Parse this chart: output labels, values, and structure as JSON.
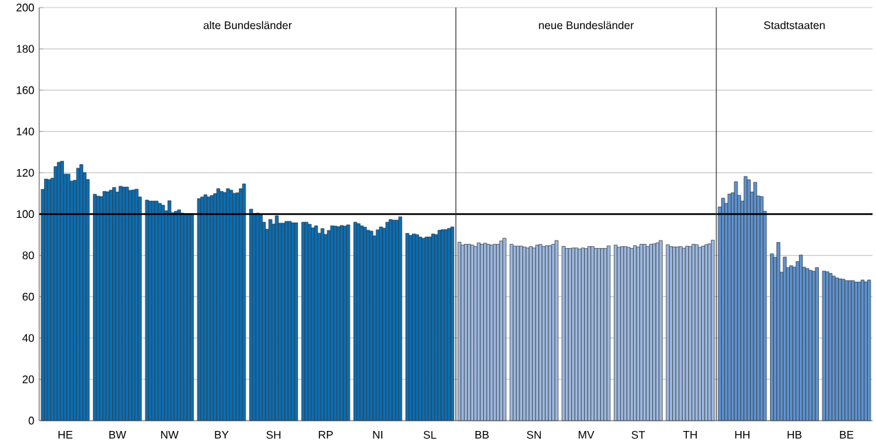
{
  "chart_data": {
    "type": "bar",
    "categories": [
      "HE",
      "BW",
      "NW",
      "BY",
      "SH",
      "RP",
      "NI",
      "SL",
      "BB",
      "SN",
      "MV",
      "ST",
      "TH",
      "HH",
      "HB",
      "BE"
    ],
    "ylim": [
      0,
      200
    ],
    "yticks": [
      0,
      20,
      40,
      60,
      80,
      100,
      120,
      140,
      160,
      180,
      200
    ],
    "grid": "y",
    "ref_lines": [
      {
        "axis": "y",
        "value": 100,
        "color": "#000000"
      }
    ],
    "annotations": [
      "alte Bundesländer",
      "neue Bundesländer",
      "Stadtstaaten"
    ],
    "series": [
      {
        "colors": [
          "#0a6eb4",
          "#0a6eb4",
          "#0a6eb4",
          "#0a6eb4",
          "#0a6eb4",
          "#0a6eb4",
          "#0a6eb4",
          "#0a6eb4",
          "#9cb8e0",
          "#9cb8e0",
          "#9cb8e0",
          "#9cb8e0",
          "#9cb8e0",
          "#5e92cf",
          "#5e92cf",
          "#5e92cf"
        ],
        "values": [
          112.0,
          109.6,
          106.8,
          107.5,
          102.4,
          96.1,
          96.1,
          90.7,
          86.4,
          85.4,
          84.4,
          85.0,
          85.2,
          103.5,
          80.8,
          72.4
        ]
      },
      {
        "colors": [
          "#0a6eb4",
          "#0a6eb4",
          "#0a6eb4",
          "#0a6eb4",
          "#0a6eb4",
          "#0a6eb4",
          "#0a6eb4",
          "#0a6eb4",
          "#9cb8e0",
          "#9cb8e0",
          "#9cb8e0",
          "#9cb8e0",
          "#9cb8e0",
          "#5e92cf",
          "#5e92cf",
          "#5e92cf"
        ],
        "values": [
          117.0,
          108.7,
          106.3,
          108.3,
          100.3,
          96.1,
          95.4,
          89.7,
          85.0,
          84.5,
          83.4,
          83.9,
          84.3,
          107.7,
          79.1,
          72.1
        ]
      },
      {
        "colors": [
          "#0a6eb4",
          "#0a6eb4",
          "#0a6eb4",
          "#0a6eb4",
          "#0a6eb4",
          "#0a6eb4",
          "#0a6eb4",
          "#0a6eb4",
          "#9cb8e0",
          "#9cb8e0",
          "#9cb8e0",
          "#9cb8e0",
          "#9cb8e0",
          "#5e92cf",
          "#5e92cf",
          "#5e92cf"
        ],
        "values": [
          116.7,
          108.5,
          106.3,
          109.4,
          100.5,
          95.1,
          94.3,
          90.4,
          85.4,
          84.5,
          83.4,
          84.3,
          84.1,
          105.2,
          86.3,
          71.3
        ]
      },
      {
        "colors": [
          "#0a6eb4",
          "#0a6eb4",
          "#0a6eb4",
          "#0a6eb4",
          "#0a6eb4",
          "#0a6eb4",
          "#0a6eb4",
          "#0a6eb4",
          "#9cb8e0",
          "#9cb8e0",
          "#9cb8e0",
          "#9cb8e0",
          "#9cb8e0",
          "#5e92cf",
          "#5e92cf",
          "#5e92cf"
        ],
        "values": [
          117.4,
          111.0,
          106.3,
          108.3,
          99.6,
          93.3,
          93.7,
          90.1,
          85.4,
          84.5,
          83.6,
          84.3,
          84.1,
          109.7,
          71.9,
          70.0
        ]
      },
      {
        "colors": [
          "#0a6eb4",
          "#0a6eb4",
          "#0a6eb4",
          "#0a6eb4",
          "#0a6eb4",
          "#0a6eb4",
          "#0a6eb4",
          "#0a6eb4",
          "#9cb8e0",
          "#9cb8e0",
          "#9cb8e0",
          "#9cb8e0",
          "#9cb8e0",
          "#5e92cf",
          "#5e92cf",
          "#5e92cf"
        ],
        "values": [
          123.0,
          110.8,
          105.2,
          109.0,
          96.1,
          94.3,
          92.2,
          88.9,
          85.0,
          84.1,
          83.6,
          83.9,
          84.3,
          110.3,
          79.2,
          69.1
        ]
      },
      {
        "colors": [
          "#0a6eb4",
          "#0a6eb4",
          "#0a6eb4",
          "#0a6eb4",
          "#0a6eb4",
          "#0a6eb4",
          "#0a6eb4",
          "#0a6eb4",
          "#9cb8e0",
          "#9cb8e0",
          "#9cb8e0",
          "#9cb8e0",
          "#9cb8e0",
          "#5e92cf",
          "#5e92cf",
          "#5e92cf"
        ],
        "values": [
          125.1,
          111.6,
          104.3,
          109.9,
          92.7,
          90.8,
          91.8,
          88.3,
          84.3,
          83.6,
          83.1,
          83.4,
          83.5,
          115.7,
          74.1,
          68.6
        ]
      },
      {
        "colors": [
          "#0a6eb4",
          "#0a6eb4",
          "#0a6eb4",
          "#0a6eb4",
          "#0a6eb4",
          "#0a6eb4",
          "#0a6eb4",
          "#0a6eb4",
          "#9cb8e0",
          "#9cb8e0",
          "#9cb8e0",
          "#9cb8e0",
          "#9cb8e0",
          "#5e92cf",
          "#5e92cf",
          "#5e92cf"
        ],
        "values": [
          125.6,
          112.9,
          101.6,
          112.3,
          97.4,
          93.0,
          89.5,
          88.9,
          86.1,
          84.3,
          83.6,
          84.7,
          84.5,
          109.1,
          75.0,
          68.5
        ]
      },
      {
        "colors": [
          "#0a6eb4",
          "#0a6eb4",
          "#0a6eb4",
          "#0a6eb4",
          "#0a6eb4",
          "#0a6eb4",
          "#0a6eb4",
          "#0a6eb4",
          "#9cb8e0",
          "#9cb8e0",
          "#9cb8e0",
          "#9cb8e0",
          "#9cb8e0",
          "#5e92cf",
          "#5e92cf",
          "#5e92cf"
        ],
        "values": [
          119.4,
          110.7,
          106.5,
          111.0,
          95.2,
          90.2,
          92.4,
          88.9,
          85.4,
          83.6,
          83.3,
          84.1,
          84.3,
          106.3,
          74.3,
          67.8
        ]
      },
      {
        "colors": [
          "#0a6eb4",
          "#0a6eb4",
          "#0a6eb4",
          "#0a6eb4",
          "#0a6eb4",
          "#0a6eb4",
          "#0a6eb4",
          "#0a6eb4",
          "#9cb8e0",
          "#9cb8e0",
          "#9cb8e0",
          "#9cb8e0",
          "#9cb8e0",
          "#5e92cf",
          "#5e92cf",
          "#5e92cf"
        ],
        "values": [
          119.4,
          113.5,
          100.7,
          110.5,
          99.2,
          92.1,
          93.8,
          90.4,
          85.9,
          85.0,
          84.3,
          85.4,
          85.4,
          118.2,
          77.0,
          67.8
        ]
      },
      {
        "colors": [
          "#0a6eb4",
          "#0a6eb4",
          "#0a6eb4",
          "#0a6eb4",
          "#0a6eb4",
          "#0a6eb4",
          "#0a6eb4",
          "#0a6eb4",
          "#9cb8e0",
          "#9cb8e0",
          "#9cb8e0",
          "#9cb8e0",
          "#9cb8e0",
          "#5e92cf",
          "#5e92cf",
          "#5e92cf"
        ],
        "values": [
          116.0,
          113.1,
          101.3,
          112.3,
          95.6,
          94.3,
          93.2,
          90.1,
          85.4,
          85.3,
          84.3,
          85.4,
          85.2,
          116.6,
          80.2,
          67.8
        ]
      },
      {
        "colors": [
          "#0a6eb4",
          "#0a6eb4",
          "#0a6eb4",
          "#0a6eb4",
          "#0a6eb4",
          "#0a6eb4",
          "#0a6eb4",
          "#0a6eb4",
          "#9cb8e0",
          "#9cb8e0",
          "#9cb8e0",
          "#9cb8e0",
          "#9cb8e0",
          "#5e92cf",
          "#5e92cf",
          "#5e92cf"
        ],
        "values": [
          116.4,
          113.1,
          102.1,
          111.6,
          95.6,
          94.2,
          96.1,
          92.2,
          85.0,
          84.3,
          83.4,
          84.3,
          83.9,
          110.7,
          74.3,
          67.1
        ]
      },
      {
        "colors": [
          "#0a6eb4",
          "#0a6eb4",
          "#0a6eb4",
          "#0a6eb4",
          "#0a6eb4",
          "#0a6eb4",
          "#0a6eb4",
          "#0a6eb4",
          "#9cb8e0",
          "#9cb8e0",
          "#9cb8e0",
          "#9cb8e0",
          "#9cb8e0",
          "#5e92cf",
          "#5e92cf",
          "#5e92cf"
        ],
        "values": [
          122.2,
          111.5,
          100.5,
          110.1,
          96.5,
          93.9,
          97.4,
          92.5,
          85.4,
          84.7,
          83.4,
          85.4,
          84.5,
          115.4,
          73.6,
          67.1
        ]
      },
      {
        "colors": [
          "#0a6eb4",
          "#0a6eb4",
          "#0a6eb4",
          "#0a6eb4",
          "#0a6eb4",
          "#0a6eb4",
          "#0a6eb4",
          "#0a6eb4",
          "#9cb8e0",
          "#9cb8e0",
          "#9cb8e0",
          "#9cb8e0",
          "#9cb8e0",
          "#5e92cf",
          "#5e92cf",
          "#5e92cf"
        ],
        "values": [
          124.0,
          111.7,
          100.2,
          110.3,
          96.5,
          94.5,
          97.1,
          92.5,
          85.4,
          84.7,
          83.4,
          85.6,
          85.2,
          108.8,
          72.8,
          68.1
        ]
      },
      {
        "colors": [
          "#0a6eb4",
          "#0a6eb4",
          "#0a6eb4",
          "#0a6eb4",
          "#0a6eb4",
          "#0a6eb4",
          "#0a6eb4",
          "#0a6eb4",
          "#9cb8e0",
          "#9cb8e0",
          "#9cb8e0",
          "#9cb8e0",
          "#9cb8e0",
          "#5e92cf",
          "#5e92cf",
          "#5e92cf"
        ],
        "values": [
          120.1,
          112.1,
          100.2,
          112.3,
          95.8,
          94.2,
          97.1,
          93.1,
          87.0,
          85.4,
          83.4,
          86.1,
          85.6,
          108.5,
          72.3,
          67.2
        ]
      },
      {
        "colors": [
          "#0a6eb4",
          "#0a6eb4",
          "#0a6eb4",
          "#0a6eb4",
          "#0a6eb4",
          "#0a6eb4",
          "#0a6eb4",
          "#0a6eb4",
          "#9cb8e0",
          "#9cb8e0",
          "#9cb8e0",
          "#9cb8e0",
          "#9cb8e0",
          "#5e92cf",
          "#5e92cf",
          "#5e92cf"
        ],
        "values": [
          116.8,
          108.3,
          100.2,
          114.6,
          95.8,
          94.8,
          98.7,
          93.8,
          88.3,
          87.2,
          84.6,
          87.2,
          87.4,
          101.4,
          74.1,
          68.1
        ]
      }
    ]
  }
}
